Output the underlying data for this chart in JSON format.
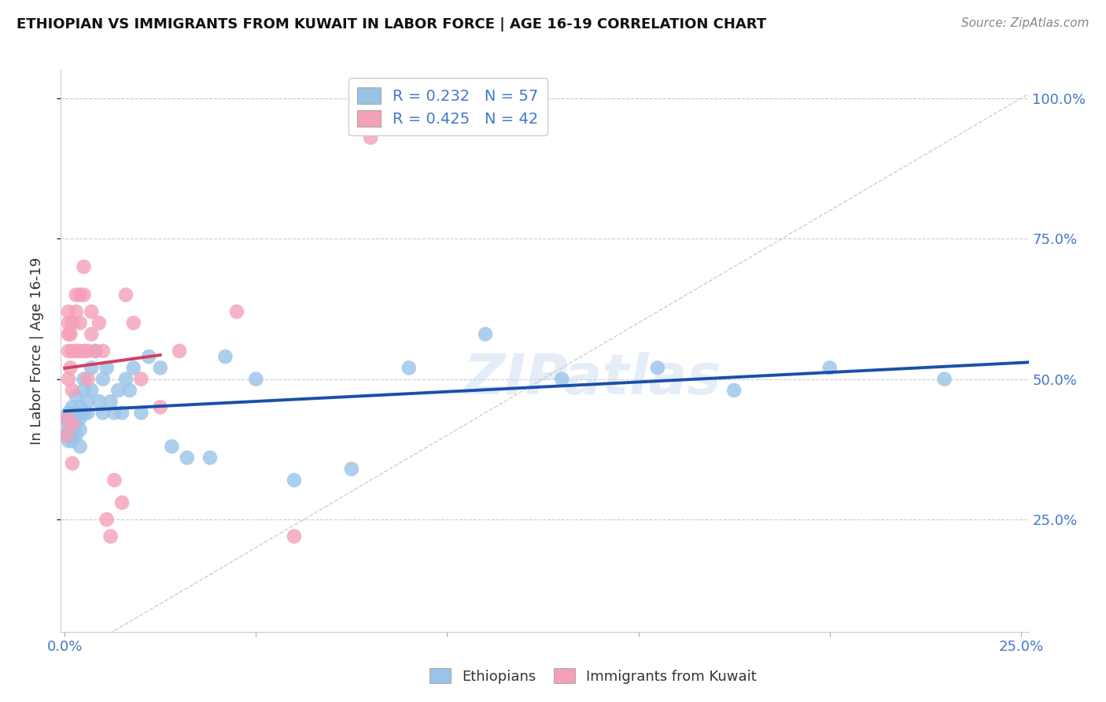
{
  "title": "ETHIOPIAN VS IMMIGRANTS FROM KUWAIT IN LABOR FORCE | AGE 16-19 CORRELATION CHART",
  "source": "Source: ZipAtlas.com",
  "ylabel": "In Labor Force | Age 16-19",
  "xlim": [
    -0.001,
    0.252
  ],
  "ylim": [
    0.05,
    1.05
  ],
  "ytick_vals": [
    0.25,
    0.5,
    0.75,
    1.0
  ],
  "ytick_labels": [
    "25.0%",
    "50.0%",
    "75.0%",
    "100.0%"
  ],
  "xtick_vals": [
    0.0,
    0.05,
    0.1,
    0.15,
    0.2,
    0.25
  ],
  "xtick_labels": [
    "0.0%",
    "",
    "",
    "",
    "",
    "25.0%"
  ],
  "legend_label1": "Ethiopians",
  "legend_label2": "Immigrants from Kuwait",
  "R_eth": 0.232,
  "N_eth": 57,
  "R_kuw": 0.425,
  "N_kuw": 42,
  "blue_scatter": "#99c4e8",
  "pink_scatter": "#f4a0b8",
  "blue_line": "#1a4faa",
  "pink_line": "#d04065",
  "diag_color": "#bbbbbb",
  "watermark": "ZIPatlas",
  "ethiopians_x": [
    0.0005,
    0.0005,
    0.001,
    0.001,
    0.001,
    0.001,
    0.0015,
    0.0015,
    0.002,
    0.002,
    0.002,
    0.002,
    0.002,
    0.003,
    0.003,
    0.003,
    0.003,
    0.004,
    0.004,
    0.004,
    0.004,
    0.005,
    0.005,
    0.005,
    0.006,
    0.006,
    0.007,
    0.007,
    0.008,
    0.009,
    0.01,
    0.01,
    0.011,
    0.012,
    0.013,
    0.014,
    0.015,
    0.016,
    0.017,
    0.018,
    0.02,
    0.022,
    0.025,
    0.028,
    0.032,
    0.038,
    0.042,
    0.05,
    0.06,
    0.075,
    0.09,
    0.11,
    0.13,
    0.155,
    0.175,
    0.2,
    0.23
  ],
  "ethiopians_y": [
    0.4,
    0.43,
    0.41,
    0.39,
    0.44,
    0.42,
    0.4,
    0.43,
    0.42,
    0.41,
    0.39,
    0.43,
    0.45,
    0.42,
    0.4,
    0.44,
    0.47,
    0.43,
    0.41,
    0.45,
    0.38,
    0.48,
    0.44,
    0.5,
    0.46,
    0.44,
    0.52,
    0.48,
    0.55,
    0.46,
    0.5,
    0.44,
    0.52,
    0.46,
    0.44,
    0.48,
    0.44,
    0.5,
    0.48,
    0.52,
    0.44,
    0.54,
    0.52,
    0.38,
    0.36,
    0.36,
    0.54,
    0.5,
    0.32,
    0.34,
    0.52,
    0.58,
    0.5,
    0.52,
    0.48,
    0.52,
    0.5
  ],
  "kuwait_x": [
    0.0005,
    0.0005,
    0.001,
    0.001,
    0.001,
    0.001,
    0.001,
    0.0015,
    0.0015,
    0.002,
    0.002,
    0.002,
    0.002,
    0.002,
    0.003,
    0.003,
    0.003,
    0.004,
    0.004,
    0.004,
    0.005,
    0.005,
    0.005,
    0.006,
    0.006,
    0.007,
    0.007,
    0.008,
    0.009,
    0.01,
    0.011,
    0.012,
    0.013,
    0.015,
    0.016,
    0.018,
    0.02,
    0.025,
    0.03,
    0.045,
    0.06,
    0.08
  ],
  "kuwait_y": [
    0.4,
    0.43,
    0.55,
    0.58,
    0.62,
    0.6,
    0.5,
    0.52,
    0.58,
    0.55,
    0.48,
    0.6,
    0.42,
    0.35,
    0.65,
    0.62,
    0.55,
    0.65,
    0.6,
    0.55,
    0.7,
    0.65,
    0.55,
    0.55,
    0.5,
    0.62,
    0.58,
    0.55,
    0.6,
    0.55,
    0.25,
    0.22,
    0.32,
    0.28,
    0.65,
    0.6,
    0.5,
    0.45,
    0.55,
    0.62,
    0.22,
    0.93
  ]
}
